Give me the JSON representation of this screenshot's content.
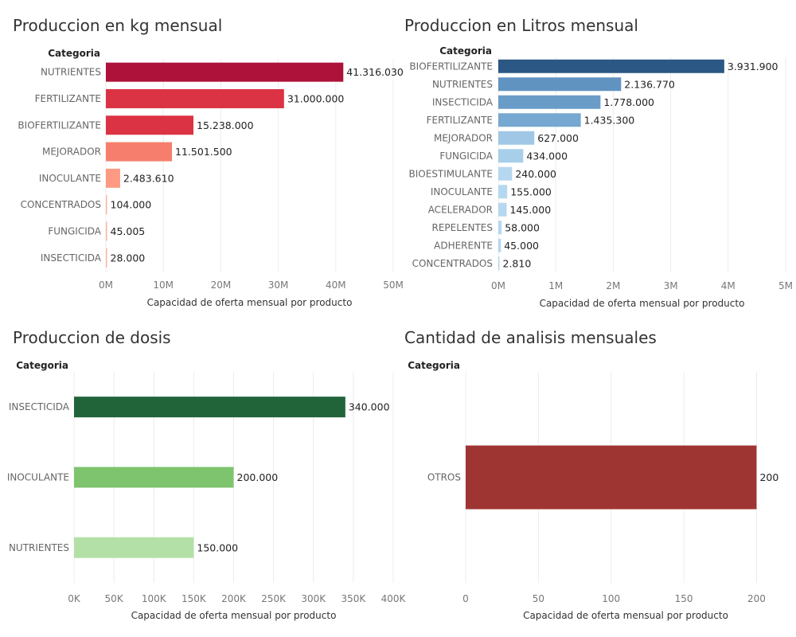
{
  "charts": [
    {
      "panel": "kg",
      "title": "Produccion en kg mensual",
      "chart_data": {
        "type": "bar",
        "orientation": "horizontal",
        "title": "Produccion en kg mensual",
        "category_header": "Categoria",
        "categories": [
          "NUTRIENTES",
          "FERTILIZANTE",
          "BIOFERTILIZANTE",
          "MEJORADOR",
          "INOCULANTE",
          "CONCENTRADOS",
          "FUNGICIDA",
          "INSECTICIDA"
        ],
        "values": [
          41316030,
          31000000,
          15238000,
          11501500,
          2483610,
          104000,
          45005,
          28000
        ],
        "value_labels": [
          "41.316.030",
          "31.000.000",
          "15.238.000",
          "11.501.500",
          "2.483.610",
          "104.000",
          "45.005",
          "28.000"
        ],
        "colors": [
          "#ae123a",
          "#db3343",
          "#db3343",
          "#f57f6c",
          "#fc9a83",
          "#fdb5a4",
          "#fdb5a4",
          "#fdb5a4"
        ],
        "xlabel": "Capacidad de oferta mensual por producto",
        "xlim": [
          0,
          50000000
        ],
        "xticks": [
          0,
          10000000,
          20000000,
          30000000,
          40000000,
          50000000
        ],
        "xtick_labels": [
          "0M",
          "10M",
          "20M",
          "30M",
          "40M",
          "50M"
        ],
        "grid": true
      }
    },
    {
      "panel": "litros",
      "title": "Produccion en Litros mensual",
      "chart_data": {
        "type": "bar",
        "orientation": "horizontal",
        "title": "Produccion en Litros mensual",
        "category_header": "Categoria",
        "categories": [
          "BIOFERTILIZANTE",
          "NUTRIENTES",
          "INSECTICIDA",
          "FERTILIZANTE",
          "MEJORADOR",
          "FUNGICIDA",
          "BIOESTIMULANTE",
          "INOCULANTE",
          "ACELERADOR",
          "REPELENTES",
          "ADHERENTE",
          "CONCENTRADOS"
        ],
        "values": [
          3931900,
          2136770,
          1778000,
          1435300,
          627000,
          434000,
          240000,
          155000,
          145000,
          58000,
          45000,
          2810
        ],
        "value_labels": [
          "3.931.900",
          "2.136.770",
          "1.778.000",
          "1.435.300",
          "627.000",
          "434.000",
          "240.000",
          "155.000",
          "145.000",
          "58.000",
          "45.000",
          "2.810"
        ],
        "colors": [
          "#2a5783",
          "#6193c1",
          "#6a9cc8",
          "#76a8d1",
          "#a0c8e6",
          "#a8cfea",
          "#b5d8f0",
          "#b5d8f0",
          "#b5d8f0",
          "#b5d8f0",
          "#b5d8f0",
          "#b5d8f0"
        ],
        "xlabel": "Capacidad de oferta mensual por producto",
        "xlim": [
          0,
          5000000
        ],
        "xticks": [
          0,
          1000000,
          2000000,
          3000000,
          4000000,
          5000000
        ],
        "xtick_labels": [
          "0M",
          "1M",
          "2M",
          "3M",
          "4M",
          "5M"
        ],
        "grid": true
      }
    },
    {
      "panel": "dosis",
      "title": "Produccion de dosis",
      "chart_data": {
        "type": "bar",
        "orientation": "horizontal",
        "title": "Produccion de dosis",
        "category_header": "Categoria",
        "categories": [
          "INSECTICIDA",
          "INOCULANTE",
          "NUTRIENTES"
        ],
        "values": [
          340000,
          200000,
          150000
        ],
        "value_labels": [
          "340.000",
          "200.000",
          "150.000"
        ],
        "colors": [
          "#22643a",
          "#7ec46e",
          "#b3e0a6"
        ],
        "xlabel": "Capacidad de oferta mensual por producto",
        "xlim": [
          0,
          400000
        ],
        "xticks": [
          0,
          50000,
          100000,
          150000,
          200000,
          250000,
          300000,
          350000,
          400000
        ],
        "xtick_labels": [
          "0K",
          "50K",
          "100K",
          "150K",
          "200K",
          "250K",
          "300K",
          "350K",
          "400K"
        ],
        "grid": true
      }
    },
    {
      "panel": "analisis",
      "title": "Cantidad de analisis mensuales",
      "chart_data": {
        "type": "bar",
        "orientation": "horizontal",
        "title": "Cantidad de analisis mensuales",
        "category_header": "Categoria",
        "categories": [
          "OTROS"
        ],
        "values": [
          200
        ],
        "value_labels": [
          "200"
        ],
        "colors": [
          "#9e3532"
        ],
        "xlabel": "Capacidad de oferta mensual por producto",
        "xlim": [
          0,
          220
        ],
        "xticks": [
          0,
          50,
          100,
          150,
          200
        ],
        "xtick_labels": [
          "0",
          "50",
          "100",
          "150",
          "200"
        ],
        "grid": true
      }
    }
  ]
}
